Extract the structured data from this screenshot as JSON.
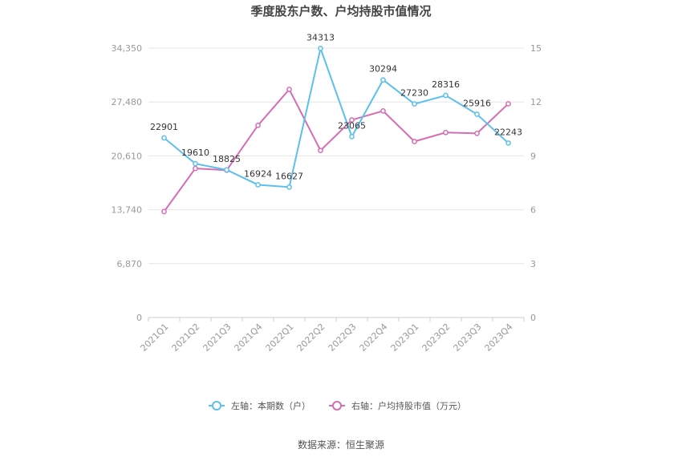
{
  "chart_data": {
    "type": "line",
    "title": "季度股东户数、户均持股市值情况",
    "categories": [
      "2021Q1",
      "2021Q2",
      "2021Q3",
      "2021Q4",
      "2022Q1",
      "2022Q2",
      "2022Q3",
      "2022Q4",
      "2023Q1",
      "2023Q2",
      "2023Q3",
      "2023Q4"
    ],
    "left_axis": {
      "ticks": [
        "0",
        "6,870",
        "13,740",
        "20,610",
        "27,480",
        "34,350"
      ],
      "min": 0,
      "max": 34350
    },
    "right_axis": {
      "ticks": [
        "0",
        "3",
        "6",
        "9",
        "12",
        "15"
      ],
      "min": 0,
      "max": 15
    },
    "series": [
      {
        "name": "左轴：本期数（户）",
        "axis": "left",
        "color": "#5bc0eb",
        "values": [
          22901,
          19610,
          18825,
          16924,
          16627,
          34313,
          23065,
          30294,
          27230,
          28316,
          25916,
          22243
        ],
        "labels": [
          "22901",
          "19610",
          "18825",
          "16924",
          "16627",
          "34313",
          "23065",
          "30294",
          "27230",
          "28316",
          "25916",
          "22243"
        ]
      },
      {
        "name": "右轴：户均持股市值（万元）",
        "axis": "right",
        "color": "#d46db3",
        "values": [
          5.9,
          8.3,
          8.2,
          10.7,
          12.7,
          9.3,
          11.0,
          11.5,
          9.8,
          10.3,
          10.25,
          11.9
        ]
      }
    ],
    "grid": true,
    "legend_position": "bottom"
  },
  "source": "数据来源：恒生聚源"
}
